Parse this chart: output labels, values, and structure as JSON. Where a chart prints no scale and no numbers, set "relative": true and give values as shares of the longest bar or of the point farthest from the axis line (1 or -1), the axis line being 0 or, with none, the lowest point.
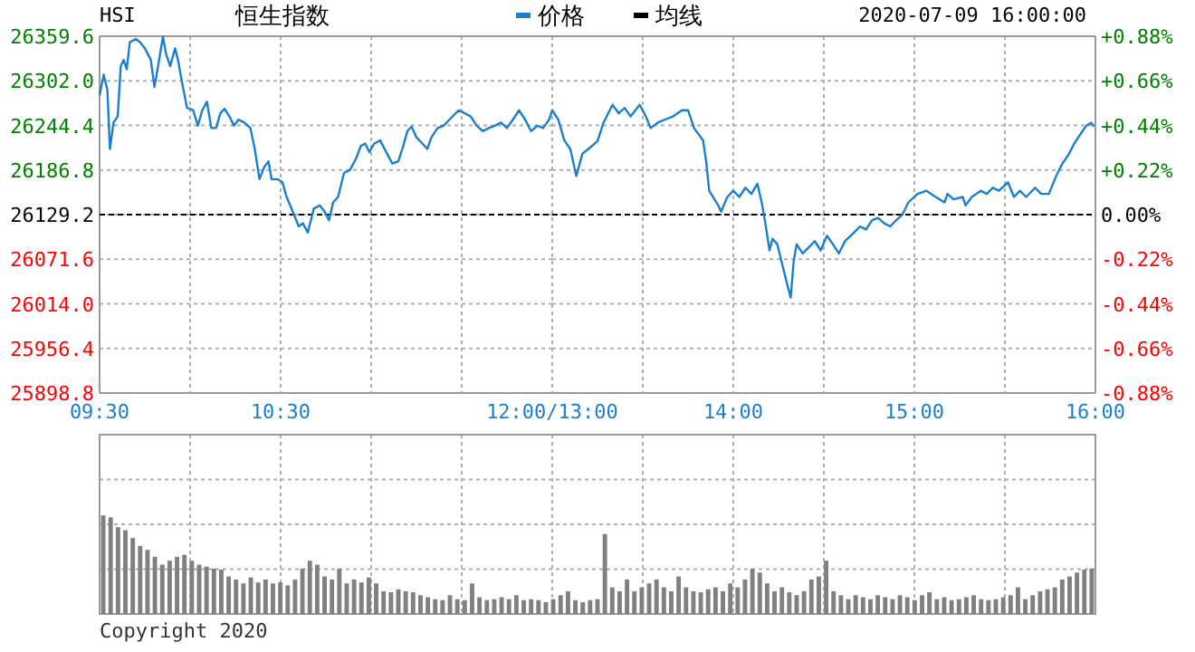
{
  "chart_data": [
    {
      "type": "line",
      "title": "恒生指数",
      "subtitle": "HSI",
      "legend": "top",
      "grid": true,
      "annotations": [
        "2020-07-09 16:00:00"
      ],
      "xlim": [
        9.5,
        12
      ],
      "xticks": [
        {
          "value": 9.5,
          "label": "09:30"
        },
        {
          "value": 10,
          "label": null
        },
        {
          "value": 10.5,
          "label": "10:30"
        },
        {
          "value": 11,
          "label": null
        },
        {
          "value": 11.5,
          "label": null
        },
        {
          "value": 12,
          "label": "12:00/13:00"
        }
      ],
      "ylim": [
        25898.8,
        26359.6
      ],
      "yticks": [
        {
          "value": 26359.6,
          "label": "26359.6"
        },
        {
          "value": 26302.0,
          "label": "26302.0"
        },
        {
          "value": 26244.4,
          "label": "26244.4"
        },
        {
          "value": 26186.8,
          "label": "26186.8"
        },
        {
          "value": 26129.2,
          "label": "26129.2"
        },
        {
          "value": 26071.6,
          "label": "26071.6"
        },
        {
          "value": 26014.0,
          "label": "26014.0"
        },
        {
          "value": 25956.4,
          "label": "25956.4"
        },
        {
          "value": 25898.8,
          "label": "25898.8"
        }
      ],
      "ref_lines": [
        {
          "axis": "y",
          "value": 26129.2,
          "color": "#000000",
          "line_style": "dashed"
        }
      ],
      "series": [
        {
          "name": "价格",
          "color": "#1a7fd0",
          "line_style": "solid",
          "x": [
            9.5,
            9.523,
            9.543,
            9.557,
            9.577,
            9.6,
            9.617,
            9.633,
            9.65,
            9.667,
            9.7,
            9.723,
            9.75,
            9.783,
            9.803,
            9.823,
            9.85,
            9.867,
            9.89,
            9.917,
            9.933,
            9.957,
            9.983,
            10.017,
            10.043,
            10.067,
            10.093,
            10.117,
            10.143,
            10.167,
            10.19,
            10.217,
            10.243,
            10.267,
            10.3,
            10.333,
            10.357,
            10.383,
            10.41,
            10.433,
            10.45,
            10.483,
            10.51,
            10.533,
            10.567,
            10.6,
            10.623,
            10.65,
            10.683,
            10.717,
            10.743,
            10.767,
            10.79,
            10.817,
            10.85,
            10.883,
            10.917,
            10.943,
            10.967,
            10.99,
            11.017,
            11.05,
            11.083,
            11.117,
            11.15,
            11.177,
            11.2,
            11.223,
            11.25,
            11.283,
            11.31,
            11.333,
            11.367,
            11.4,
            11.433,
            11.483,
            11.517,
            11.55,
            11.583,
            11.617,
            11.65,
            11.683,
            11.717,
            11.75,
            11.783,
            11.817,
            11.85,
            11.883,
            11.917,
            11.95,
            11.983,
            12.0
          ],
          "values": [
            26283,
            26310,
            26290,
            26214,
            26248,
            26256,
            26321,
            26329,
            26317,
            26352,
            26356,
            26352,
            26344,
            26329,
            26294,
            26321,
            26359,
            26337,
            26321,
            26344,
            26329,
            26298,
            26267,
            26264,
            26244,
            26264,
            26275,
            26241,
            26241,
            26260,
            26266,
            26256,
            26244,
            26252,
            26248,
            26241,
            26214,
            26175,
            26191,
            26198,
            26175,
            26175,
            26171,
            26152,
            26133,
            26114,
            26118,
            26106,
            26137,
            26141,
            26133,
            26122,
            26145,
            26152,
            26183,
            26187,
            26202,
            26218,
            26221,
            26210,
            26221,
            26225,
            26210,
            26195,
            26198,
            26218,
            26237,
            26243,
            26229,
            26221,
            26214,
            26229,
            26241,
            26244,
            26252,
            26264,
            26260,
            26256,
            26244,
            26237,
            26241,
            26244,
            26248,
            26241,
            26252,
            26264,
            26252,
            26237,
            26244,
            26241,
            26252,
            26264
          ]
        },
        {
          "name": "均线",
          "color": "#000000"
        }
      ]
    },
    {
      "type": "line",
      "grid": true,
      "xlim": [
        13,
        16
      ],
      "xticks": [
        {
          "value": 13.5,
          "label": null
        },
        {
          "value": 14,
          "label": "14:00"
        },
        {
          "value": 14.5,
          "label": null
        },
        {
          "value": 15,
          "label": "15:00"
        },
        {
          "value": 15.5,
          "label": null
        },
        {
          "value": 16,
          "label": "16:00"
        }
      ],
      "ylim": [
        25898.8,
        26359.6
      ],
      "y2lim": [
        -0.88,
        0.88
      ],
      "y2ticks": [
        {
          "value": 0.88,
          "label": "+0.88%"
        },
        {
          "value": 0.66,
          "label": "+0.66%"
        },
        {
          "value": 0.44,
          "label": "+0.44%"
        },
        {
          "value": 0.22,
          "label": "+0.22%"
        },
        {
          "value": 0,
          "label": "0.00%"
        },
        {
          "value": -0.22,
          "label": "-0.22%"
        },
        {
          "value": -0.44,
          "label": "-0.44%"
        },
        {
          "value": -0.66,
          "label": "-0.66%"
        },
        {
          "value": -0.88,
          "label": "-0.88%"
        }
      ],
      "ref_lines": [
        {
          "axis": "y",
          "value": 26129.2,
          "color": "#000000",
          "line_style": "dashed"
        }
      ],
      "series": [
        {
          "color": "#1a7fd0",
          "line_style": "solid",
          "x": [
            13.0,
            13.033,
            13.067,
            13.1,
            13.133,
            13.167,
            13.2,
            13.25,
            13.283,
            13.333,
            13.367,
            13.4,
            13.433,
            13.483,
            13.517,
            13.543,
            13.583,
            13.623,
            13.667,
            13.717,
            13.75,
            13.783,
            13.833,
            13.85,
            13.867,
            13.917,
            13.933,
            13.967,
            14.0,
            14.033,
            14.067,
            14.1,
            14.133,
            14.157,
            14.177,
            14.2,
            14.217,
            14.243,
            14.267,
            14.3,
            14.317,
            14.333,
            14.35,
            14.383,
            14.417,
            14.45,
            14.483,
            14.517,
            14.55,
            14.583,
            14.617,
            14.667,
            14.7,
            14.733,
            14.767,
            14.8,
            14.833,
            14.867,
            14.9,
            14.933,
            14.967,
            15.017,
            15.067,
            15.117,
            15.167,
            15.183,
            15.217,
            15.267,
            15.283,
            15.317,
            15.367,
            15.4,
            15.433,
            15.467,
            15.517,
            15.55,
            15.583,
            15.617,
            15.667,
            15.7,
            15.743,
            15.783,
            15.817,
            15.85,
            15.883,
            15.917,
            15.95,
            15.977,
            15.993
          ],
          "values": [
            26264,
            26252,
            26225,
            26214,
            26179,
            26208,
            26214,
            26224,
            26248,
            26271,
            26260,
            26267,
            26256,
            26271,
            26256,
            26241,
            26248,
            26252,
            26256,
            26264,
            26264,
            26241,
            26225,
            26198,
            26160,
            26141,
            26133,
            26152,
            26160,
            26152,
            26164,
            26156,
            26169,
            26145,
            26118,
            26083,
            26098,
            26091,
            26068,
            26037,
            26022,
            26068,
            26091,
            26079,
            26087,
            26095,
            26083,
            26102,
            26091,
            26079,
            26095,
            26106,
            26114,
            26110,
            26122,
            26125,
            26118,
            26114,
            26122,
            26129,
            26145,
            26156,
            26160,
            26152,
            26145,
            26156,
            26149,
            26152,
            26141,
            26152,
            26160,
            26156,
            26164,
            26160,
            26171,
            26152,
            26160,
            26152,
            26164,
            26156,
            26156,
            26179,
            26195,
            26206,
            26221,
            26233,
            26244,
            26248,
            26243
          ]
        }
      ]
    },
    {
      "type": "bar",
      "relative": true,
      "color": "#808080",
      "grid": true,
      "annotations": [
        "Copyright 2020"
      ],
      "categories": [
        null,
        null,
        null,
        null,
        null,
        null,
        null,
        null,
        null,
        null,
        null,
        null,
        null,
        null,
        null,
        null,
        null,
        null,
        null,
        null,
        null,
        null,
        null,
        null,
        null,
        null,
        null,
        null,
        null,
        null,
        null,
        null,
        null,
        null,
        null,
        null,
        null,
        null,
        null,
        null,
        null,
        null,
        null,
        null,
        null,
        null,
        null,
        null,
        null,
        null,
        null,
        null,
        null,
        null,
        null,
        null,
        null,
        null,
        null,
        null,
        null,
        null,
        null,
        null,
        null,
        null,
        null,
        null,
        null,
        null,
        null,
        null,
        null,
        null,
        null,
        null,
        null,
        null,
        null,
        null,
        null,
        null,
        null,
        null,
        null,
        null,
        null,
        null,
        null,
        null,
        null,
        null,
        null,
        null,
        null,
        null,
        null,
        null,
        null,
        null,
        null,
        null,
        null,
        null,
        null,
        null,
        null,
        null,
        null,
        null,
        null,
        null,
        null,
        null,
        null,
        null,
        null,
        null,
        null,
        null,
        null,
        null,
        null,
        null,
        null,
        null,
        null,
        null,
        null,
        null,
        null,
        null,
        null,
        null,
        null
      ],
      "values": [
        1,
        0.98,
        0.88,
        0.85,
        0.77,
        0.69,
        0.65,
        0.58,
        0.5,
        0.54,
        0.58,
        0.6,
        0.54,
        0.5,
        0.48,
        0.46,
        0.45,
        0.38,
        0.35,
        0.31,
        0.37,
        0.32,
        0.35,
        0.31,
        0.32,
        0.29,
        0.35,
        0.46,
        0.54,
        0.5,
        0.38,
        0.35,
        0.46,
        0.31,
        0.35,
        0.32,
        0.37,
        0.31,
        0.23,
        0.22,
        0.25,
        0.23,
        0.22,
        0.19,
        0.17,
        0.15,
        0.14,
        0.19,
        0.15,
        0.14,
        0.31,
        0.17,
        0.14,
        0.15,
        0.17,
        0.15,
        0.19,
        0.14,
        0.15,
        0.14,
        0.12,
        0.15,
        0.19,
        0.23,
        0.14,
        0.12,
        0.14,
        0.15,
        0.81,
        0.27,
        0.23,
        0.35,
        0.23,
        0.27,
        0.31,
        0.35,
        0.27,
        0.23,
        0.38,
        0.27,
        0.23,
        0.22,
        0.25,
        0.27,
        0.23,
        0.31,
        0.27,
        0.35,
        0.46,
        0.42,
        0.31,
        0.23,
        0.27,
        0.22,
        0.19,
        0.23,
        0.35,
        0.38,
        0.54,
        0.23,
        0.19,
        0.15,
        0.19,
        0.17,
        0.15,
        0.19,
        0.17,
        0.15,
        0.19,
        0.17,
        0.14,
        0.19,
        0.22,
        0.15,
        0.17,
        0.14,
        0.15,
        0.17,
        0.19,
        0.15,
        0.14,
        0.15,
        0.17,
        0.19,
        0.27,
        0.15,
        0.19,
        0.23,
        0.25,
        0.27,
        0.35,
        0.38,
        0.42,
        0.45,
        0.46
      ]
    }
  ]
}
